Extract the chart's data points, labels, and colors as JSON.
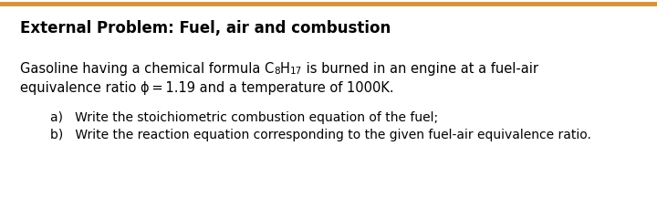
{
  "title": "External Problem: Fuel, air and combustion",
  "top_border_color": "#d4933a",
  "background_color": "#ffffff",
  "line1": "Gasoline having a chemical formula C",
  "sub_c": "8",
  "mid_h": "H",
  "sub_h": "17",
  "line1_end": " is burned in an engine at a fuel-air",
  "line2": "equivalence ratio ϕ = 1.19 and a temperature of 1000K.",
  "item_a": "a)   Write the stoichiometric combustion equation of the fuel;",
  "item_b": "b)   Write the reaction equation corresponding to the given fuel-air equivalence ratio.",
  "title_fontsize": 12,
  "body_fontsize": 10.5,
  "item_fontsize": 10,
  "sub_fontsize": 7.5
}
